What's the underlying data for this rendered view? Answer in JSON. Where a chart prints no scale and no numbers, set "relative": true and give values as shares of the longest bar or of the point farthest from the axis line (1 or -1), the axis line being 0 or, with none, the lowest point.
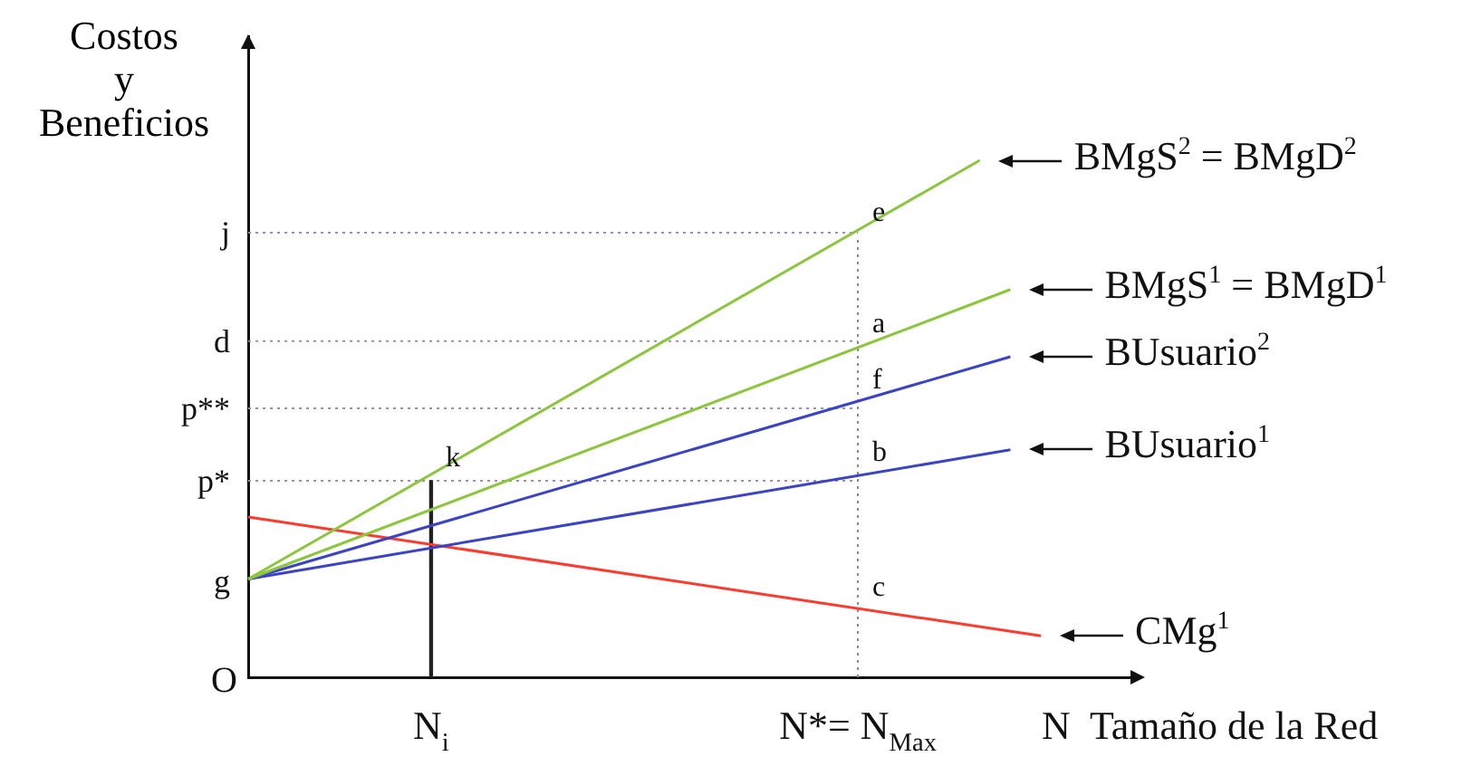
{
  "chart_data": {
    "type": "line",
    "relative": true,
    "xlabel": "N  Tamaño de la Red",
    "ylabel": "Costos y Beneficios",
    "categories": [
      null,
      null,
      null,
      null,
      null,
      null,
      "N$_{i}$",
      null,
      null,
      null,
      null,
      null,
      null,
      null,
      null,
      null,
      null,
      null,
      null,
      null,
      "N*= N$_{Max}$",
      null,
      null,
      null,
      null,
      null,
      null,
      null,
      null,
      null
    ],
    "grid": false,
    "legend": false,
    "marker": "none",
    "series": [
      {
        "name": "BMgS$^{2}$ = BMgD$^{2}$",
        "color": "#8cc63e",
        "values": [
          0.19,
          null,
          null,
          null,
          null,
          null,
          null,
          null,
          null,
          null,
          null,
          null,
          null,
          null,
          null,
          null,
          null,
          null,
          null,
          null,
          null,
          null,
          null,
          null,
          1,
          null,
          null,
          null,
          null,
          null
        ]
      },
      {
        "name": "BMgS$^{1}$ = BMgD$^{1}$",
        "color": "#8cc63e",
        "values": [
          0.19,
          null,
          null,
          null,
          null,
          null,
          null,
          null,
          null,
          null,
          null,
          null,
          null,
          null,
          null,
          null,
          null,
          null,
          null,
          null,
          null,
          null,
          null,
          null,
          null,
          0.75,
          null,
          null,
          null,
          null
        ]
      },
      {
        "name": "BUsuario$^{2}$",
        "color": "#3b44c4",
        "values": [
          0.19,
          null,
          null,
          null,
          null,
          null,
          null,
          null,
          null,
          null,
          null,
          null,
          null,
          null,
          null,
          null,
          null,
          null,
          null,
          null,
          null,
          null,
          null,
          null,
          null,
          0.62,
          null,
          null,
          null,
          null
        ]
      },
      {
        "name": "BUsuario$^{1}$",
        "color": "#3b44c4",
        "values": [
          0.19,
          null,
          null,
          null,
          null,
          null,
          null,
          null,
          null,
          null,
          null,
          null,
          null,
          null,
          null,
          null,
          null,
          null,
          null,
          null,
          null,
          null,
          null,
          null,
          null,
          0.44,
          null,
          null,
          null,
          null
        ]
      },
      {
        "name": "CMg$^{1}$",
        "color": "#ff3b30",
        "values": [
          0.31,
          null,
          null,
          null,
          null,
          null,
          null,
          null,
          null,
          null,
          null,
          null,
          null,
          null,
          null,
          null,
          null,
          null,
          null,
          null,
          null,
          null,
          null,
          null,
          null,
          null,
          0.08,
          null,
          null,
          null
        ]
      },
      {
        "type": "bar",
        "color": "#222222",
        "values": [
          null,
          null,
          null,
          null,
          null,
          null,
          0.38,
          null,
          null,
          null,
          null,
          null,
          null,
          null,
          null,
          null,
          null,
          null,
          null,
          null,
          null,
          null,
          null,
          null,
          null,
          null,
          null,
          null,
          null,
          null
        ]
      }
    ],
    "ref_lines": [
      {
        "axis": "y",
        "value": 0.86,
        "label": "j",
        "color": "#9a8fb0",
        "line_style": "dotted"
      },
      {
        "axis": "y",
        "value": 0.65,
        "label": "d",
        "color": "#9a8fb0",
        "line_style": "dotted"
      },
      {
        "axis": "y",
        "value": 0.52,
        "label": "p**",
        "color": "#9a8fb0",
        "line_style": "dotted"
      },
      {
        "axis": "y",
        "value": 0.38,
        "label": "p*",
        "color": "#9a8fb0",
        "line_style": "dotted"
      },
      {
        "axis": "x",
        "value": "N*= N$_{Max}$",
        "color": "#888888",
        "line_style": "dotted"
      }
    ],
    "annotations": [
      "O",
      "g",
      {
        "text": "k",
        "x": "N$_{i}$",
        "y": 0.38
      },
      {
        "text": "e",
        "x": "N*= N$_{Max}$",
        "y": 0.855
      },
      {
        "text": "a",
        "x": "N*= N$_{Max}$",
        "y": 0.64
      },
      {
        "text": "f",
        "x": "N*= N$_{Max}$",
        "y": 0.53
      },
      {
        "text": "b",
        "x": "N*= N$_{Max}$",
        "y": 0.39
      },
      {
        "text": "c",
        "x": "N*= N$_{Max}$",
        "y": 0.13
      }
    ]
  }
}
